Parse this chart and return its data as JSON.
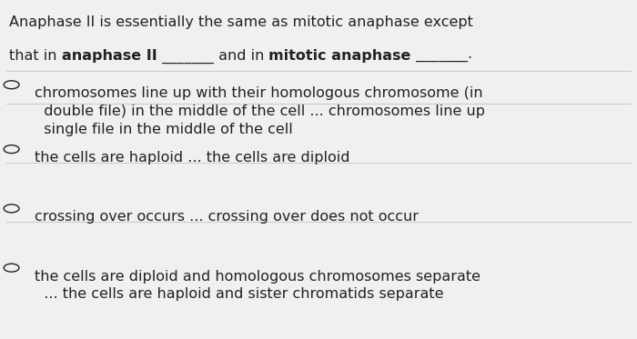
{
  "background_color": "#f0f0f0",
  "title_line1": "Anaphase II is essentially the same as mitotic anaphase except",
  "title_line2_parts": [
    {
      "text": "that in ",
      "bold": false
    },
    {
      "text": "anaphase II",
      "bold": true
    },
    {
      "text": " _______ and in ",
      "bold": false
    },
    {
      "text": "mitotic anaphase",
      "bold": true
    },
    {
      "text": " _______.",
      "bold": false
    }
  ],
  "options": [
    "chromosomes line up with their homologous chromosome (in\n  double file) in the middle of the cell ... chromosomes line up\n  single file in the middle of the cell",
    "the cells are haploid ... the cells are diploid",
    "crossing over occurs ... crossing over does not occur",
    "the cells are diploid and homologous chromosomes separate\n  ... the cells are haploid and sister chromatids separate"
  ],
  "font_size_title": 11.5,
  "font_size_options": 11.5,
  "text_color": "#222222",
  "divider_color": "#cccccc"
}
